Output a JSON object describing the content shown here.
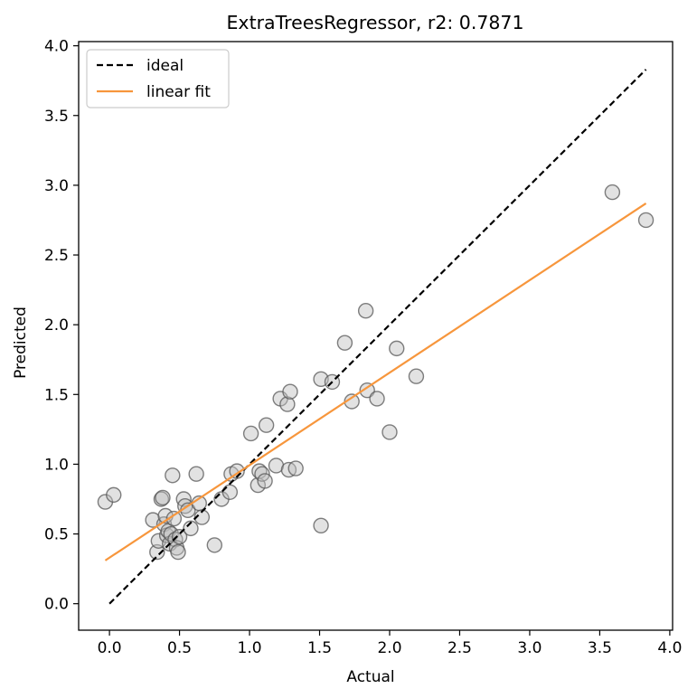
{
  "chart_data": {
    "type": "scatter",
    "title": "ExtraTreesRegressor, r2: 0.7871",
    "xlabel": "Actual",
    "ylabel": "Predicted",
    "xlim": [
      -0.22,
      4.02
    ],
    "ylim": [
      -0.19,
      4.03
    ],
    "xticks": [
      0.0,
      0.5,
      1.0,
      1.5,
      2.0,
      2.5,
      3.0,
      3.5,
      4.0
    ],
    "yticks": [
      0.0,
      0.5,
      1.0,
      1.5,
      2.0,
      2.5,
      3.0,
      3.5,
      4.0
    ],
    "xtick_labels": [
      "0.0",
      "0.5",
      "1.0",
      "1.5",
      "2.0",
      "2.5",
      "3.0",
      "3.5",
      "4.0"
    ],
    "ytick_labels": [
      "0.0",
      "0.5",
      "1.0",
      "1.5",
      "2.0",
      "2.5",
      "3.0",
      "3.5",
      "4.0"
    ],
    "grid": false,
    "legend": {
      "position": "top-left",
      "entries": [
        {
          "label": "ideal",
          "style": "dashed",
          "color": "#000000"
        },
        {
          "label": "linear fit",
          "style": "solid",
          "color": "#f7963c"
        }
      ]
    },
    "ideal_line": {
      "x": [
        0.0,
        3.83
      ],
      "y": [
        0.0,
        3.83
      ]
    },
    "fit_line": {
      "x": [
        -0.03,
        3.83
      ],
      "y": [
        0.31,
        2.87
      ]
    },
    "points": {
      "color": "#bfbfbf",
      "x": [
        -0.03,
        0.03,
        0.31,
        0.34,
        0.35,
        0.37,
        0.38,
        0.39,
        0.4,
        0.41,
        0.42,
        0.43,
        0.44,
        0.45,
        0.46,
        0.47,
        0.48,
        0.49,
        0.5,
        0.53,
        0.54,
        0.56,
        0.58,
        0.62,
        0.64,
        0.66,
        0.75,
        0.8,
        0.86,
        0.87,
        0.91,
        1.01,
        1.06,
        1.07,
        1.09,
        1.11,
        1.12,
        1.19,
        1.22,
        1.27,
        1.28,
        1.29,
        1.33,
        1.51,
        1.51,
        1.59,
        1.68,
        1.73,
        1.83,
        1.84,
        1.91,
        2.0,
        2.05,
        2.19,
        3.59,
        3.83
      ],
      "y": [
        0.73,
        0.78,
        0.6,
        0.37,
        0.45,
        0.75,
        0.76,
        0.57,
        0.63,
        0.49,
        0.52,
        0.43,
        0.5,
        0.92,
        0.61,
        0.46,
        0.4,
        0.37,
        0.48,
        0.75,
        0.7,
        0.67,
        0.54,
        0.93,
        0.72,
        0.62,
        0.42,
        0.75,
        0.8,
        0.93,
        0.95,
        1.22,
        0.85,
        0.95,
        0.93,
        0.88,
        1.28,
        0.99,
        1.47,
        1.43,
        0.96,
        1.52,
        0.97,
        0.56,
        1.61,
        1.59,
        1.87,
        1.45,
        2.1,
        1.53,
        1.47,
        1.23,
        1.83,
        1.63,
        2.95,
        2.75
      ]
    }
  }
}
